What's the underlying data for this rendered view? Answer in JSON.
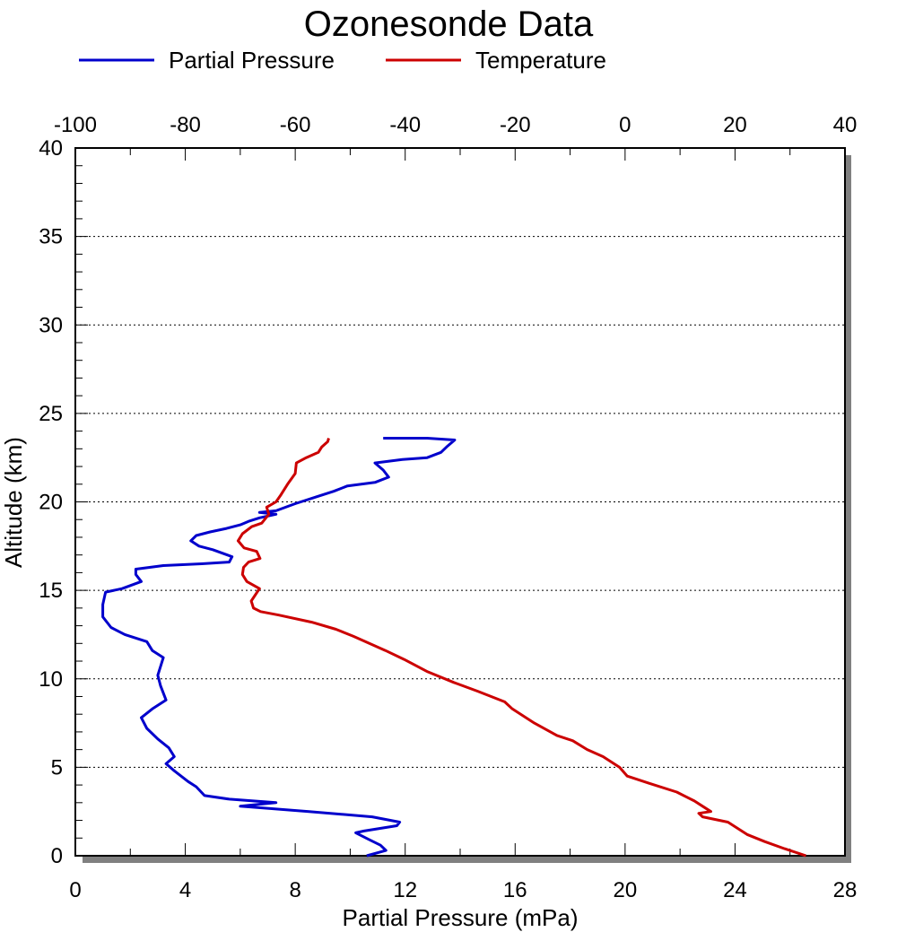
{
  "chart_data": {
    "type": "line",
    "title": "Ozonesonde Data",
    "xlabel": "Partial Pressure (mPa)",
    "ylabel": "Altitude (km)",
    "xlim": [
      0,
      28
    ],
    "ylim": [
      0,
      40
    ],
    "x2lim": [
      -100,
      40
    ],
    "x_ticks": [
      "0",
      "4",
      "8",
      "12",
      "16",
      "20",
      "24",
      "28"
    ],
    "x2_ticks": [
      "-100",
      "-80",
      "-60",
      "-40",
      "-20",
      "0",
      "20",
      "40"
    ],
    "y_ticks": [
      "0",
      "5",
      "10",
      "15",
      "20",
      "25",
      "30",
      "35",
      "40"
    ],
    "grid": "horizontal dotted lines",
    "legend_position": "top",
    "series": [
      {
        "name": "Partial Pressure",
        "axis": "bottom",
        "color": "#0000cc",
        "points": [
          [
            10.6,
            0.0
          ],
          [
            11.3,
            0.3
          ],
          [
            11.1,
            0.6
          ],
          [
            10.7,
            0.9
          ],
          [
            10.2,
            1.3
          ],
          [
            10.5,
            1.4
          ],
          [
            11.7,
            1.7
          ],
          [
            11.8,
            1.9
          ],
          [
            10.8,
            2.2
          ],
          [
            8.5,
            2.5
          ],
          [
            6.0,
            2.8
          ],
          [
            7.3,
            3.0
          ],
          [
            5.6,
            3.2
          ],
          [
            4.7,
            3.4
          ],
          [
            4.4,
            3.9
          ],
          [
            4.1,
            4.2
          ],
          [
            3.6,
            4.8
          ],
          [
            3.3,
            5.2
          ],
          [
            3.6,
            5.6
          ],
          [
            3.4,
            6.1
          ],
          [
            3.0,
            6.6
          ],
          [
            2.6,
            7.2
          ],
          [
            2.4,
            7.8
          ],
          [
            2.8,
            8.3
          ],
          [
            3.3,
            8.8
          ],
          [
            3.1,
            9.6
          ],
          [
            3.0,
            10.2
          ],
          [
            3.2,
            11.2
          ],
          [
            2.8,
            11.6
          ],
          [
            2.6,
            12.1
          ],
          [
            1.8,
            12.5
          ],
          [
            1.3,
            12.9
          ],
          [
            1.0,
            13.5
          ],
          [
            1.0,
            14.2
          ],
          [
            1.1,
            14.9
          ],
          [
            1.7,
            15.1
          ],
          [
            2.4,
            15.5
          ],
          [
            2.2,
            15.9
          ],
          [
            2.2,
            16.2
          ],
          [
            3.2,
            16.4
          ],
          [
            4.6,
            16.5
          ],
          [
            5.6,
            16.6
          ],
          [
            5.7,
            16.9
          ],
          [
            5.0,
            17.3
          ],
          [
            4.5,
            17.5
          ],
          [
            4.2,
            17.8
          ],
          [
            4.4,
            18.1
          ],
          [
            4.9,
            18.3
          ],
          [
            5.5,
            18.5
          ],
          [
            6.0,
            18.7
          ],
          [
            6.3,
            18.9
          ],
          [
            6.7,
            19.1
          ],
          [
            7.3,
            19.3
          ],
          [
            6.7,
            19.4
          ],
          [
            7.3,
            19.5
          ],
          [
            8.0,
            19.9
          ],
          [
            8.8,
            20.3
          ],
          [
            9.4,
            20.6
          ],
          [
            9.9,
            20.9
          ],
          [
            10.9,
            21.1
          ],
          [
            11.4,
            21.4
          ],
          [
            11.2,
            21.8
          ],
          [
            10.9,
            22.2
          ],
          [
            11.9,
            22.4
          ],
          [
            12.8,
            22.5
          ],
          [
            13.3,
            22.8
          ],
          [
            13.5,
            23.1
          ],
          [
            13.8,
            23.5
          ],
          [
            12.8,
            23.6
          ],
          [
            11.2,
            23.6
          ]
        ]
      },
      {
        "name": "Temperature",
        "axis": "top",
        "color": "#cc0000",
        "points": [
          [
            32.9,
            0.0
          ],
          [
            29.0,
            0.4
          ],
          [
            25.4,
            0.8
          ],
          [
            22.2,
            1.2
          ],
          [
            18.7,
            1.9
          ],
          [
            14.1,
            2.2
          ],
          [
            13.4,
            2.4
          ],
          [
            15.6,
            2.5
          ],
          [
            14.1,
            2.8
          ],
          [
            12.6,
            3.1
          ],
          [
            9.4,
            3.6
          ],
          [
            4.3,
            4.1
          ],
          [
            0.4,
            4.5
          ],
          [
            -1.0,
            5.0
          ],
          [
            -4.0,
            5.6
          ],
          [
            -6.9,
            6.0
          ],
          [
            -9.5,
            6.5
          ],
          [
            -12.4,
            6.8
          ],
          [
            -16.5,
            7.5
          ],
          [
            -20.5,
            8.3
          ],
          [
            -21.9,
            8.7
          ],
          [
            -26.8,
            9.3
          ],
          [
            -31.2,
            9.8
          ],
          [
            -35.9,
            10.4
          ],
          [
            -40.2,
            11.1
          ],
          [
            -43.6,
            11.6
          ],
          [
            -49.4,
            12.4
          ],
          [
            -52.6,
            12.8
          ],
          [
            -57.0,
            13.2
          ],
          [
            -63.0,
            13.6
          ],
          [
            -66.3,
            13.8
          ],
          [
            -67.6,
            14.0
          ],
          [
            -68.0,
            14.4
          ],
          [
            -66.5,
            15.1
          ],
          [
            -68.8,
            15.5
          ],
          [
            -69.6,
            15.9
          ],
          [
            -69.4,
            16.3
          ],
          [
            -68.5,
            16.6
          ],
          [
            -66.4,
            16.8
          ],
          [
            -67.0,
            17.2
          ],
          [
            -69.3,
            17.4
          ],
          [
            -70.4,
            17.8
          ],
          [
            -69.6,
            18.2
          ],
          [
            -67.9,
            18.6
          ],
          [
            -66.1,
            18.8
          ],
          [
            -64.8,
            19.3
          ],
          [
            -65.2,
            19.7
          ],
          [
            -63.5,
            20.0
          ],
          [
            -62.6,
            20.4
          ],
          [
            -61.4,
            21.0
          ],
          [
            -60.0,
            21.6
          ],
          [
            -59.8,
            22.2
          ],
          [
            -58.0,
            22.5
          ],
          [
            -55.8,
            22.8
          ],
          [
            -55.2,
            23.1
          ],
          [
            -54.1,
            23.4
          ],
          [
            -53.9,
            23.6
          ]
        ]
      }
    ]
  }
}
